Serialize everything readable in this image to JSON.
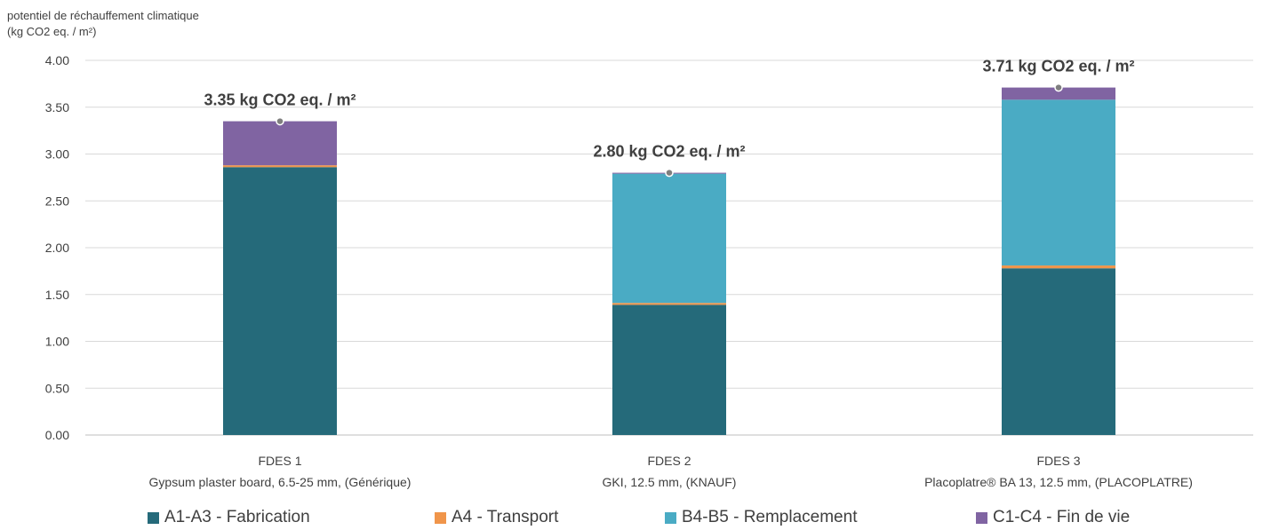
{
  "chart_data": {
    "type": "bar",
    "stacked": true,
    "ylabel_line1": "potentiel de réchauffement climatique",
    "ylabel_line2": "(kg CO2 eq. / m²)",
    "ylim": [
      0,
      4
    ],
    "yticks": [
      "0.00",
      "0.50",
      "1.00",
      "1.50",
      "2.00",
      "2.50",
      "3.00",
      "3.50",
      "4.00"
    ],
    "grid": true,
    "legend_position": "bottom",
    "categories": [
      {
        "line1": "FDES 1",
        "line2": "Gypsum plaster board, 6.5-25 mm, (Générique)"
      },
      {
        "line1": "FDES 2",
        "line2": "GKI,  12.5 mm, (KNAUF)"
      },
      {
        "line1": "FDES 3",
        "line2": "Placoplatre® BA 13, 12.5 mm, (PLACOPLATRE)"
      }
    ],
    "series": [
      {
        "name": "A1-A3 - Fabrication",
        "color": "#256a7a",
        "values": [
          2.86,
          1.39,
          1.78
        ]
      },
      {
        "name": "A4 - Transport",
        "color": "#f0954a",
        "values": [
          0.02,
          0.02,
          0.03
        ]
      },
      {
        "name": "B4-B5 - Remplacement",
        "color": "#4aabc4",
        "values": [
          0.0,
          1.38,
          1.77
        ]
      },
      {
        "name": "C1-C4 - Fin de vie",
        "color": "#8064a2",
        "values": [
          0.47,
          0.01,
          0.13
        ]
      }
    ],
    "totals": [
      3.35,
      2.8,
      3.71
    ],
    "total_labels": [
      "3.35 kg CO2 eq. / m²",
      "2.80 kg CO2 eq. / m²",
      "3.71 kg CO2 eq. / m²"
    ]
  }
}
